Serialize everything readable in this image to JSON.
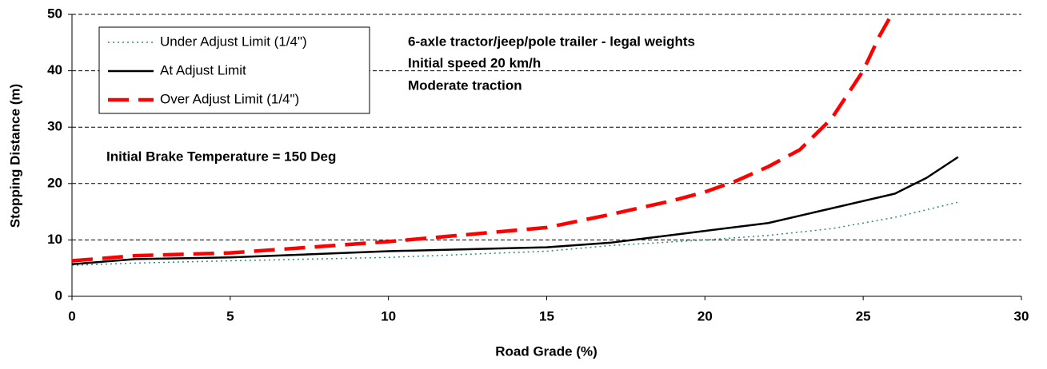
{
  "chart_data": {
    "type": "line",
    "x_label": "Road Grade (%)",
    "y_label": "Stopping Distance (m)",
    "xlim": [
      0,
      30
    ],
    "xticks": [
      0,
      5,
      10,
      15,
      20,
      25,
      30
    ],
    "ylim": [
      0,
      50
    ],
    "yticks": [
      0,
      10,
      20,
      30,
      40,
      50
    ],
    "grid": true,
    "legend_position": "upper left",
    "annotations": [
      "6-axle tractor/jeep/pole trailer - legal weights",
      "Initial speed 20 km/h",
      "Moderate traction",
      "Initial Brake Temperature = 150 Deg"
    ],
    "series": [
      {
        "name": "Under Adjust Limit (1/4\")",
        "color": "#2e8b7a",
        "style": "dotted",
        "x": [
          0,
          2,
          5,
          10,
          15,
          17,
          20,
          22,
          24,
          26,
          28
        ],
        "values": [
          5.5,
          5.9,
          6.3,
          6.9,
          8,
          9,
          10,
          10.8,
          12,
          14,
          16.7
        ]
      },
      {
        "name": "At Adjust Limit",
        "color": "#000000",
        "style": "solid",
        "x": [
          0,
          2,
          5,
          10,
          15,
          17,
          18,
          20,
          22,
          24,
          26,
          27,
          28
        ],
        "values": [
          5.7,
          6.6,
          6.9,
          8,
          8.7,
          9.5,
          10.2,
          11.6,
          13,
          15.6,
          18.2,
          21,
          24.7
        ]
      },
      {
        "name": "Over Adjust Limit (1/4\")",
        "color": "#ff0000",
        "style": "dashed",
        "x": [
          0,
          2,
          5,
          10,
          15,
          17,
          19,
          20,
          21,
          22,
          23,
          24,
          25,
          25.5,
          25.9
        ],
        "values": [
          6.3,
          7.2,
          7.7,
          9.7,
          12.2,
          14.5,
          17,
          18.5,
          20.5,
          23,
          26,
          31.5,
          40,
          46,
          50
        ]
      }
    ]
  }
}
